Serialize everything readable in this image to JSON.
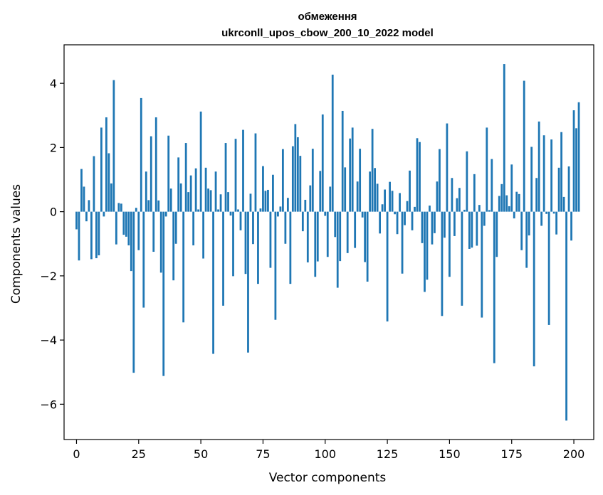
{
  "chart_data": {
    "type": "bar",
    "title_line1": "обмеження",
    "title_line2": "ukrconll_upos_cbow_200_10_2022 model",
    "xlabel": "Vector components",
    "ylabel": "Components values",
    "xlim": [
      -5,
      208
    ],
    "ylim": [
      -7.1,
      5.2
    ],
    "xticks": [
      0,
      25,
      50,
      75,
      100,
      125,
      150,
      175,
      200
    ],
    "yticks": [
      -6,
      -4,
      -2,
      0,
      2,
      4
    ],
    "ytick_labels": [
      "−6",
      "−4",
      "−2",
      "0",
      "2",
      "4"
    ],
    "bar_color": "#1f77b4",
    "grid": false,
    "values": [
      -0.55,
      -1.52,
      1.33,
      0.78,
      -0.3,
      0.36,
      -1.48,
      1.73,
      -1.45,
      -1.36,
      2.62,
      -0.15,
      2.94,
      1.82,
      0.88,
      4.1,
      -1.02,
      0.27,
      0.25,
      -0.72,
      -0.78,
      -1.05,
      -1.85,
      -5.02,
      0.12,
      -1.2,
      3.54,
      -2.99,
      1.25,
      0.36,
      2.35,
      -1.25,
      2.94,
      0.35,
      -1.9,
      -5.12,
      -0.15,
      2.37,
      0.72,
      -2.14,
      -1.0,
      1.69,
      0.88,
      -3.45,
      2.14,
      0.61,
      1.13,
      -1.05,
      1.35,
      0.07,
      3.12,
      -1.46,
      1.37,
      0.72,
      0.67,
      -4.43,
      1.25,
      0.07,
      0.54,
      -2.93,
      2.14,
      0.61,
      -0.12,
      -2.01,
      2.27,
      0.07,
      -0.58,
      2.55,
      -1.94,
      -4.39,
      0.56,
      -1.01,
      2.44,
      -2.25,
      0.1,
      1.42,
      0.65,
      0.68,
      -1.75,
      1.15,
      -3.37,
      -0.15,
      0.16,
      1.95,
      -1.0,
      0.43,
      -2.25,
      2.04,
      2.73,
      2.32,
      1.74,
      -0.61,
      0.37,
      -1.58,
      0.82,
      1.96,
      -2.03,
      -1.55,
      1.27,
      3.03,
      -0.13,
      -1.41,
      0.78,
      4.27,
      -0.79,
      -2.37,
      -1.54,
      3.14,
      1.38,
      -1.29,
      2.28,
      2.62,
      -1.13,
      0.94,
      1.96,
      -0.18,
      -1.57,
      -2.18,
      1.25,
      2.58,
      1.36,
      0.87,
      -0.68,
      0.23,
      0.69,
      -3.42,
      0.93,
      0.65,
      -0.08,
      -0.7,
      0.58,
      -1.93,
      -0.42,
      0.33,
      1.28,
      -0.58,
      0.15,
      2.29,
      2.17,
      -0.98,
      -2.5,
      -2.12,
      0.19,
      -1.02,
      -0.67,
      0.94,
      1.95,
      -3.25,
      -0.81,
      2.75,
      -2.03,
      1.05,
      -0.76,
      0.42,
      0.74,
      -2.93,
      0.06,
      1.88,
      -1.16,
      -1.12,
      1.17,
      -1.06,
      0.21,
      -3.3,
      -0.44,
      2.62,
      0.05,
      1.64,
      -4.72,
      -1.41,
      0.49,
      0.86,
      4.6,
      0.51,
      0.17,
      1.47,
      -0.21,
      0.62,
      0.55,
      -1.2,
      4.08,
      -1.75,
      -0.74,
      2.02,
      -4.82,
      1.05,
      2.81,
      -0.44,
      2.38,
      -0.07,
      -3.53,
      2.25,
      -0.06,
      -0.71,
      1.37,
      2.48,
      0.46,
      -6.51,
      1.41,
      -0.9,
      3.16,
      2.6,
      3.41
    ]
  }
}
